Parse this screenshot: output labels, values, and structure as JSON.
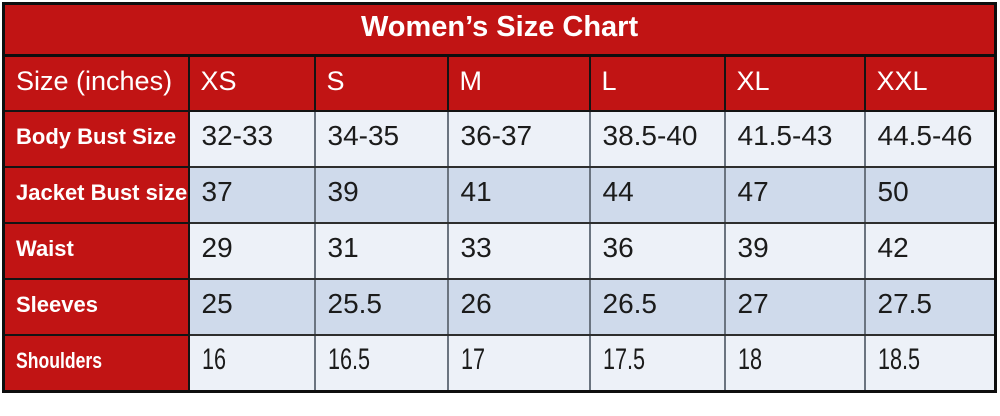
{
  "title": "Women’s Size Chart",
  "colors": {
    "header_red": "#c11414",
    "row_light": "#edf1f8",
    "row_alt_blue": "#cfdaeb",
    "outer_border": "#0e0e0e",
    "grid_gray": "#6b7480",
    "title_text": "#ffffff",
    "value_text": "#1b1b1b"
  },
  "chart_data": {
    "type": "table",
    "title": "Women’s Size Chart",
    "columns": [
      "Size (inches)",
      "XS",
      "S",
      "M",
      "L",
      "XL",
      "XXL"
    ],
    "rows": [
      {
        "label": "Body Bust Size",
        "values": [
          "32-33",
          "34-35",
          "36-37",
          "38.5-40",
          "41.5-43",
          "44.5-46"
        ]
      },
      {
        "label": "Jacket Bust size",
        "values": [
          "37",
          "39",
          "41",
          "44",
          "47",
          "50"
        ]
      },
      {
        "label": "Waist",
        "values": [
          "29",
          "31",
          "33",
          "36",
          "39",
          "42"
        ]
      },
      {
        "label": "Sleeves",
        "values": [
          "25",
          "25.5",
          "26",
          "26.5",
          "27",
          "27.5"
        ]
      },
      {
        "label": "Shoulders",
        "values": [
          "16",
          "16.5",
          "17",
          "17.5",
          "18",
          "18.5"
        ]
      }
    ]
  }
}
